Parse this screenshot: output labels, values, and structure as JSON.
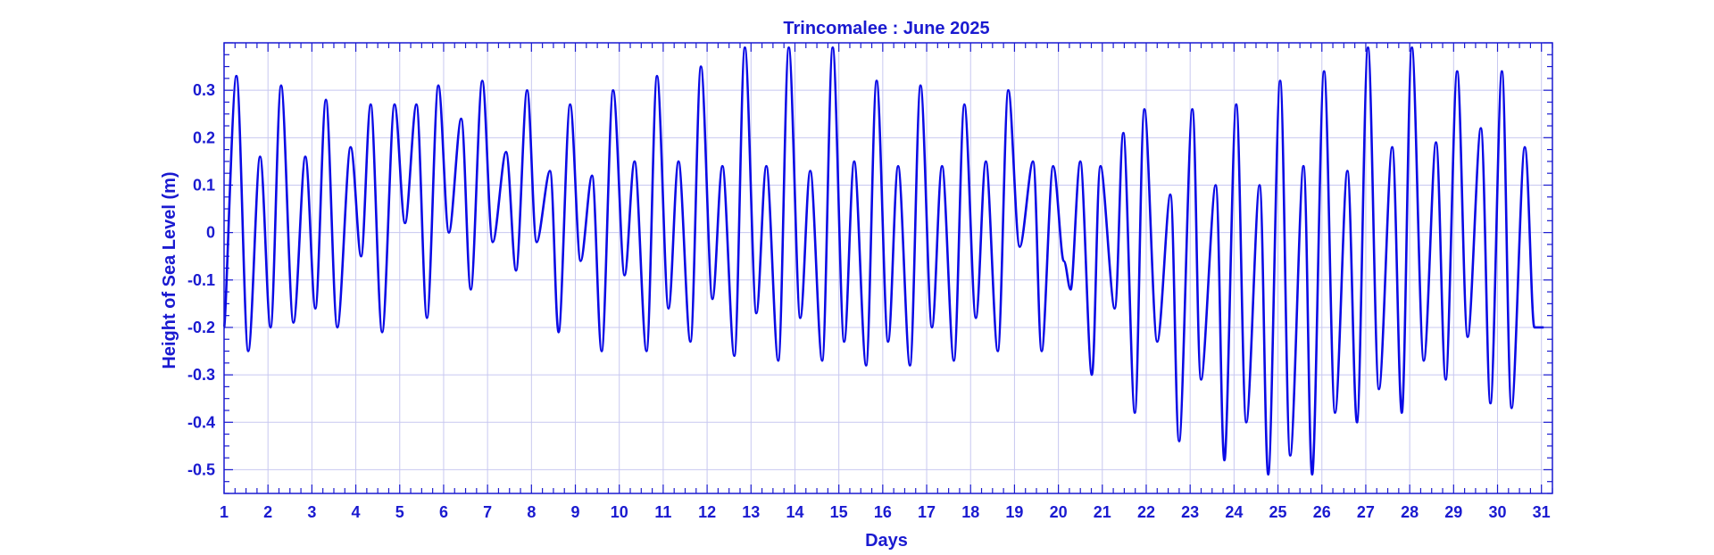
{
  "colors": {
    "series": "#0a0ae6",
    "text": "#1a1ad0",
    "axis": "#1a1ad0",
    "grid": "#c8c8f0",
    "background": "#ffffff"
  },
  "chart_data": {
    "type": "line",
    "title": "Trincomalee : June 2025",
    "xlabel": "Days",
    "ylabel": "Height of Sea Level (m)",
    "xlim": [
      1,
      31.25
    ],
    "ylim": [
      -0.55,
      0.4
    ],
    "grid": true,
    "legend": "none",
    "x_ticks": [
      1,
      2,
      3,
      4,
      5,
      6,
      7,
      8,
      9,
      10,
      11,
      12,
      13,
      14,
      15,
      16,
      17,
      18,
      19,
      20,
      21,
      22,
      23,
      24,
      25,
      26,
      27,
      28,
      29,
      30,
      31
    ],
    "y_ticks": [
      -0.5,
      -0.4,
      -0.3,
      -0.2,
      -0.1,
      0,
      0.1,
      0.2,
      0.3
    ],
    "y_tick_labels": [
      "-0.5",
      "-0.4",
      "-0.3",
      "-0.2",
      "-0.1",
      "0",
      "0.1",
      "0.2",
      "0.3"
    ],
    "series": [
      {
        "x": [
          1.0,
          1.28,
          1.55,
          1.82,
          2.06,
          2.3,
          2.58,
          2.85,
          3.08,
          3.32,
          3.58,
          3.88,
          4.12,
          4.34,
          4.6,
          4.88,
          5.12,
          5.38,
          5.62,
          5.88,
          6.12,
          6.4,
          6.62,
          6.88,
          7.12,
          7.42,
          7.65,
          7.9,
          8.12,
          8.42,
          8.62,
          8.88,
          9.12,
          9.38,
          9.6,
          9.86,
          10.12,
          10.35,
          10.62,
          10.86,
          11.12,
          11.35,
          11.62,
          11.86,
          12.12,
          12.35,
          12.62,
          12.86,
          13.12,
          13.35,
          13.62,
          13.86,
          14.12,
          14.35,
          14.62,
          14.86,
          15.12,
          15.35,
          15.62,
          15.86,
          16.12,
          16.35,
          16.62,
          16.86,
          17.12,
          17.35,
          17.62,
          17.86,
          18.12,
          18.35,
          18.62,
          18.86,
          19.12,
          19.42,
          19.62,
          19.88,
          20.12,
          20.28,
          20.5,
          20.76,
          20.96,
          21.28,
          21.48,
          21.74,
          21.96,
          22.25,
          22.55,
          22.75,
          23.05,
          23.25,
          23.58,
          23.78,
          24.05,
          24.28,
          24.58,
          24.78,
          25.05,
          25.28,
          25.58,
          25.78,
          26.05,
          26.3,
          26.58,
          26.8,
          27.05,
          27.3,
          27.6,
          27.82,
          28.05,
          28.32,
          28.6,
          28.82,
          29.08,
          29.32,
          29.62,
          29.84,
          30.1,
          30.32,
          30.62,
          30.84,
          31.05
        ],
        "y": [
          -0.2,
          0.33,
          -0.25,
          0.16,
          -0.2,
          0.31,
          -0.19,
          0.16,
          -0.16,
          0.28,
          -0.2,
          0.18,
          -0.05,
          0.27,
          -0.21,
          0.27,
          0.02,
          0.27,
          -0.18,
          0.31,
          0.0,
          0.24,
          -0.12,
          0.32,
          -0.02,
          0.17,
          -0.08,
          0.3,
          -0.02,
          0.13,
          -0.21,
          0.27,
          -0.06,
          0.12,
          -0.25,
          0.3,
          -0.09,
          0.15,
          -0.25,
          0.33,
          -0.16,
          0.15,
          -0.23,
          0.35,
          -0.14,
          0.14,
          -0.26,
          0.39,
          -0.17,
          0.14,
          -0.27,
          0.39,
          -0.18,
          0.13,
          -0.27,
          0.39,
          -0.23,
          0.15,
          -0.28,
          0.32,
          -0.23,
          0.14,
          -0.28,
          0.31,
          -0.2,
          0.14,
          -0.27,
          0.27,
          -0.18,
          0.15,
          -0.25,
          0.3,
          -0.03,
          0.15,
          -0.25,
          0.14,
          -0.06,
          -0.12,
          0.15,
          -0.3,
          0.14,
          -0.16,
          0.21,
          -0.38,
          0.26,
          -0.23,
          0.08,
          -0.44,
          0.26,
          -0.31,
          0.1,
          -0.48,
          0.27,
          -0.4,
          0.1,
          -0.51,
          0.32,
          -0.47,
          0.14,
          -0.51,
          0.34,
          -0.38,
          0.13,
          -0.4,
          0.39,
          -0.33,
          0.18,
          -0.38,
          0.39,
          -0.27,
          0.19,
          -0.31,
          0.34,
          -0.22,
          0.22,
          -0.36,
          0.34,
          -0.37,
          0.18,
          -0.2,
          -0.2
        ]
      }
    ]
  }
}
